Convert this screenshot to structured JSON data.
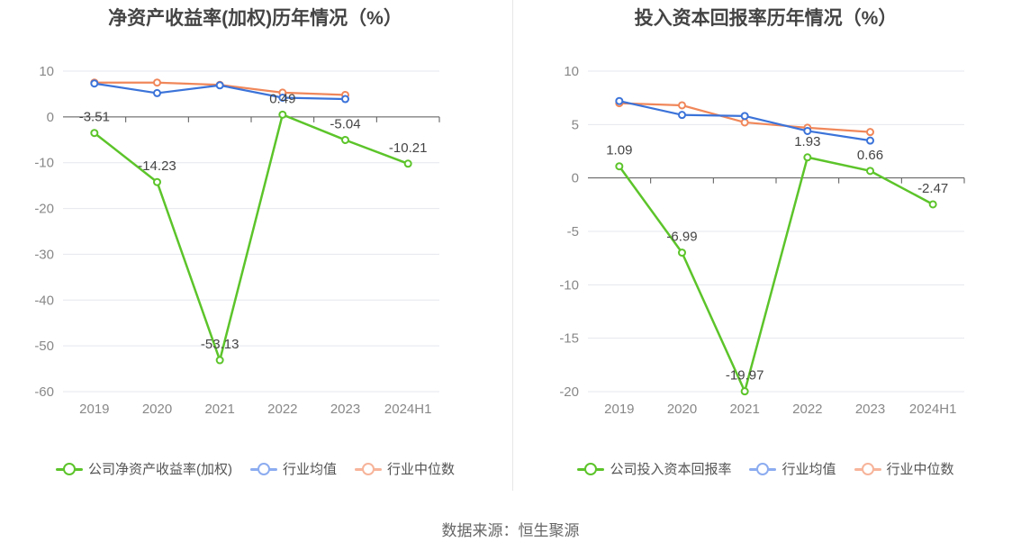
{
  "source": "数据来源：恒生聚源",
  "colors": {
    "company": "#5cc42a",
    "avg": "#3b73d9",
    "median": "#f0875a",
    "avg_legend": "#8cacf0",
    "median_legend": "#f7b49a"
  },
  "chart_data": [
    {
      "type": "line",
      "title": "净资产收益率(加权)历年情况（%）",
      "categories": [
        "2019",
        "2020",
        "2021",
        "2022",
        "2023",
        "2024H1"
      ],
      "ylim": [
        -60,
        10
      ],
      "yticks": [
        10,
        0,
        -10,
        -20,
        -30,
        -40,
        -50,
        -60
      ],
      "legend": [
        "公司净资产收益率(加权)",
        "行业均值",
        "行业中位数"
      ],
      "series": [
        {
          "name": "公司净资产收益率(加权)",
          "values": [
            -3.51,
            -14.23,
            -53.13,
            0.49,
            -5.04,
            -10.21
          ],
          "labels": [
            "-3.51",
            "-14.23",
            "-53.13",
            "0.49",
            "-5.04",
            "-10.21"
          ]
        },
        {
          "name": "行业均值",
          "values": [
            7.3,
            5.2,
            6.9,
            4.2,
            3.9,
            null
          ]
        },
        {
          "name": "行业中位数",
          "values": [
            7.5,
            7.5,
            7.0,
            5.3,
            4.8,
            null
          ]
        }
      ]
    },
    {
      "type": "line",
      "title": "投入资本回报率历年情况（%）",
      "categories": [
        "2019",
        "2020",
        "2021",
        "2022",
        "2023",
        "2024H1"
      ],
      "ylim": [
        -20,
        10
      ],
      "yticks": [
        10,
        5,
        0,
        -5,
        -10,
        -15,
        -20
      ],
      "legend": [
        "公司投入资本回报率",
        "行业均值",
        "行业中位数"
      ],
      "series": [
        {
          "name": "公司投入资本回报率",
          "values": [
            1.09,
            -6.99,
            -19.97,
            1.93,
            0.66,
            -2.47
          ],
          "labels": [
            "1.09",
            "-6.99",
            "-19.97",
            "1.93",
            "0.66",
            "-2.47"
          ]
        },
        {
          "name": "行业均值",
          "values": [
            7.2,
            5.9,
            5.8,
            4.4,
            3.5,
            null
          ]
        },
        {
          "name": "行业中位数",
          "values": [
            7.0,
            6.8,
            5.2,
            4.7,
            4.3,
            null
          ]
        }
      ]
    }
  ]
}
